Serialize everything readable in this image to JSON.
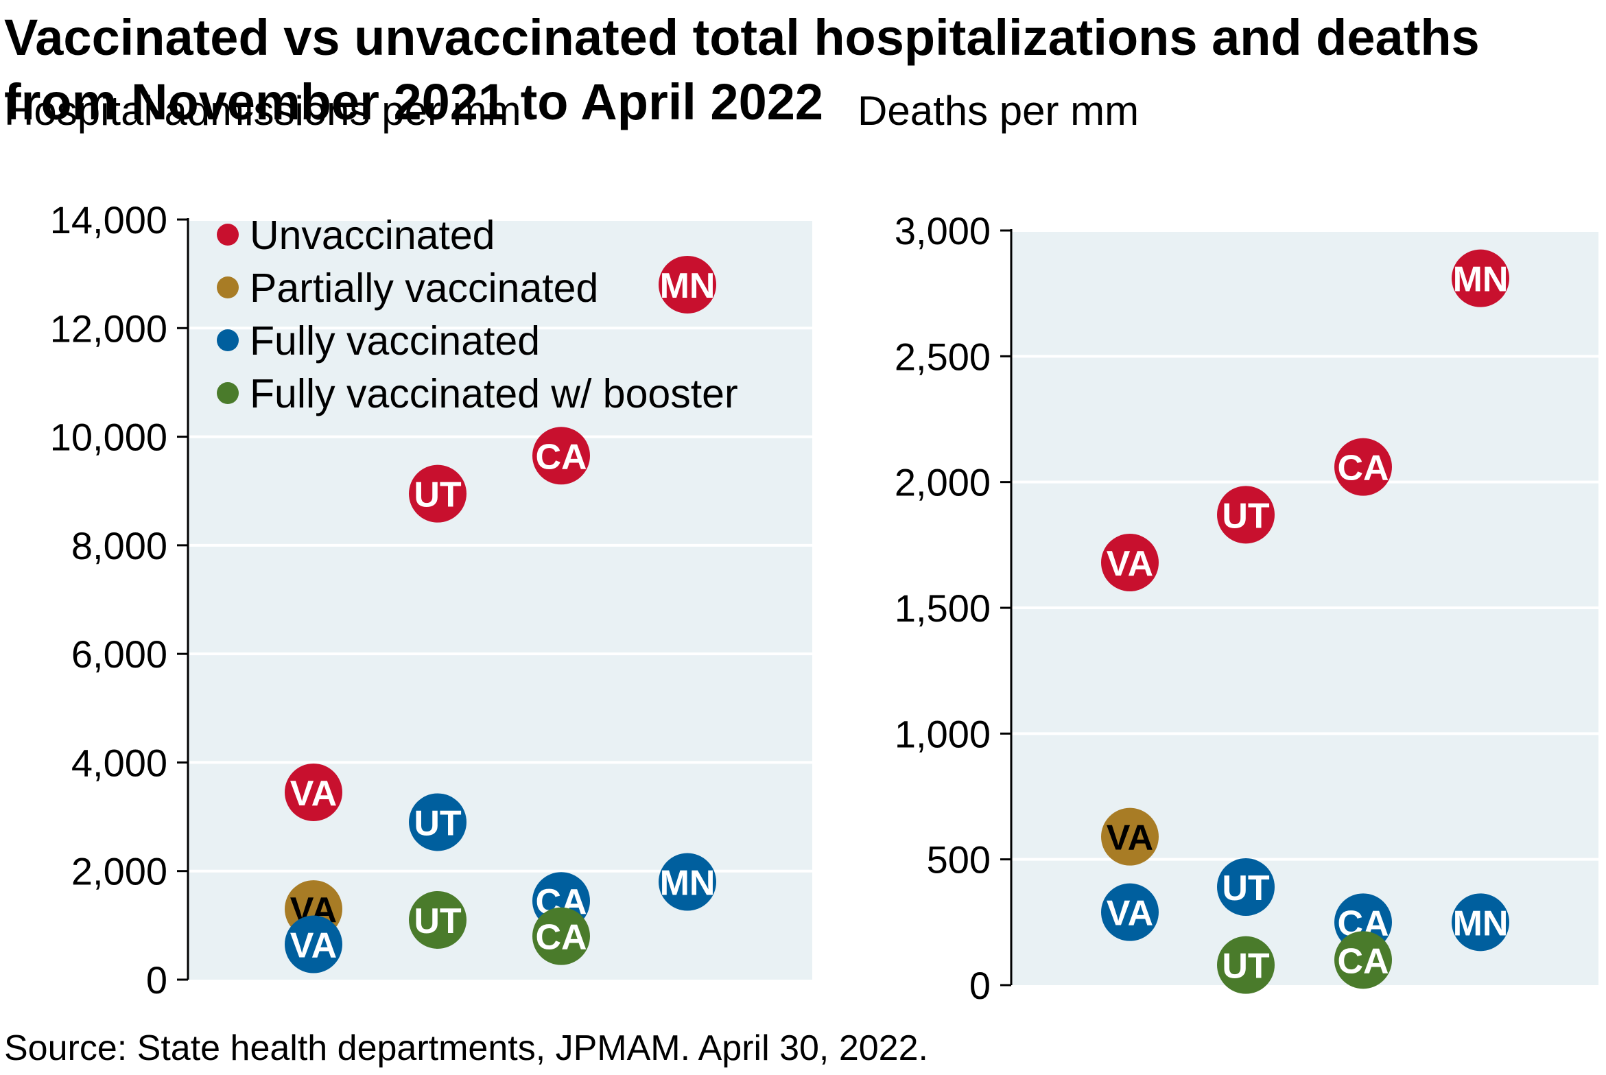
{
  "title": "Vaccinated vs unvaccinated total hospitalizations and deaths from November 2021 to April 2022",
  "source": "Source: State health departments, JPMAM. April 30, 2022.",
  "colors": {
    "plot_bg": "#e9f1f4",
    "grid": "#ffffff",
    "axis": "#000000",
    "Unvaccinated": "#c8102e",
    "Partially vaccinated": "#a87c25",
    "Fully vaccinated": "#005f9e",
    "Fully vaccinated w/ booster": "#4a7b2b"
  },
  "chart_data": [
    {
      "type": "scatter",
      "title": "Hospital admissions per mm",
      "ylabel": "Hospital admissions per mm",
      "ylim": [
        0,
        14000
      ],
      "yticks": [
        0,
        2000,
        4000,
        6000,
        8000,
        10000,
        12000,
        14000
      ],
      "ytick_labels": [
        "0",
        "2,000",
        "4,000",
        "6,000",
        "8,000",
        "10,000",
        "12,000",
        "14,000"
      ],
      "categories": [
        "VA",
        "UT",
        "CA",
        "MN"
      ],
      "grid": true,
      "legend": {
        "placement": "top-left",
        "entries": [
          "Unvaccinated",
          "Partially vaccinated",
          "Fully vaccinated",
          "Fully vaccinated w/ booster"
        ]
      },
      "series": [
        {
          "name": "Unvaccinated",
          "points": [
            {
              "label": "VA",
              "x": "VA",
              "y": 3450
            },
            {
              "label": "UT",
              "x": "UT",
              "y": 8950
            },
            {
              "label": "CA",
              "x": "CA",
              "y": 9650
            },
            {
              "label": "MN",
              "x": "MN",
              "y": 12800
            }
          ]
        },
        {
          "name": "Partially vaccinated",
          "points": [
            {
              "label": "VA",
              "x": "VA",
              "y": 1300
            }
          ]
        },
        {
          "name": "Fully vaccinated",
          "points": [
            {
              "label": "VA",
              "x": "VA",
              "y": 650
            },
            {
              "label": "UT",
              "x": "UT",
              "y": 2900
            },
            {
              "label": "CA",
              "x": "CA",
              "y": 1450
            },
            {
              "label": "MN",
              "x": "MN",
              "y": 1800
            }
          ]
        },
        {
          "name": "Fully vaccinated w/ booster",
          "points": [
            {
              "label": "UT",
              "x": "UT",
              "y": 1100
            },
            {
              "label": "CA",
              "x": "CA",
              "y": 800
            }
          ]
        }
      ]
    },
    {
      "type": "scatter",
      "title": "Deaths per mm",
      "ylabel": "Deaths per mm",
      "ylim": [
        0,
        3000
      ],
      "yticks": [
        0,
        500,
        1000,
        1500,
        2000,
        2500,
        3000
      ],
      "ytick_labels": [
        "0",
        "500",
        "1,000",
        "1,500",
        "2,000",
        "2,500",
        "3,000"
      ],
      "categories": [
        "VA",
        "UT",
        "CA",
        "MN"
      ],
      "grid": true,
      "series": [
        {
          "name": "Unvaccinated",
          "points": [
            {
              "label": "VA",
              "x": "VA",
              "y": 1680
            },
            {
              "label": "UT",
              "x": "UT",
              "y": 1870
            },
            {
              "label": "CA",
              "x": "CA",
              "y": 2060
            },
            {
              "label": "MN",
              "x": "MN",
              "y": 2810
            }
          ]
        },
        {
          "name": "Partially vaccinated",
          "points": [
            {
              "label": "VA",
              "x": "VA",
              "y": 590
            }
          ]
        },
        {
          "name": "Fully vaccinated",
          "points": [
            {
              "label": "VA",
              "x": "VA",
              "y": 290
            },
            {
              "label": "UT",
              "x": "UT",
              "y": 390
            },
            {
              "label": "CA",
              "x": "CA",
              "y": 250
            },
            {
              "label": "MN",
              "x": "MN",
              "y": 250
            }
          ]
        },
        {
          "name": "Fully vaccinated w/ booster",
          "points": [
            {
              "label": "UT",
              "x": "UT",
              "y": 80
            },
            {
              "label": "CA",
              "x": "CA",
              "y": 100
            }
          ]
        }
      ]
    }
  ]
}
